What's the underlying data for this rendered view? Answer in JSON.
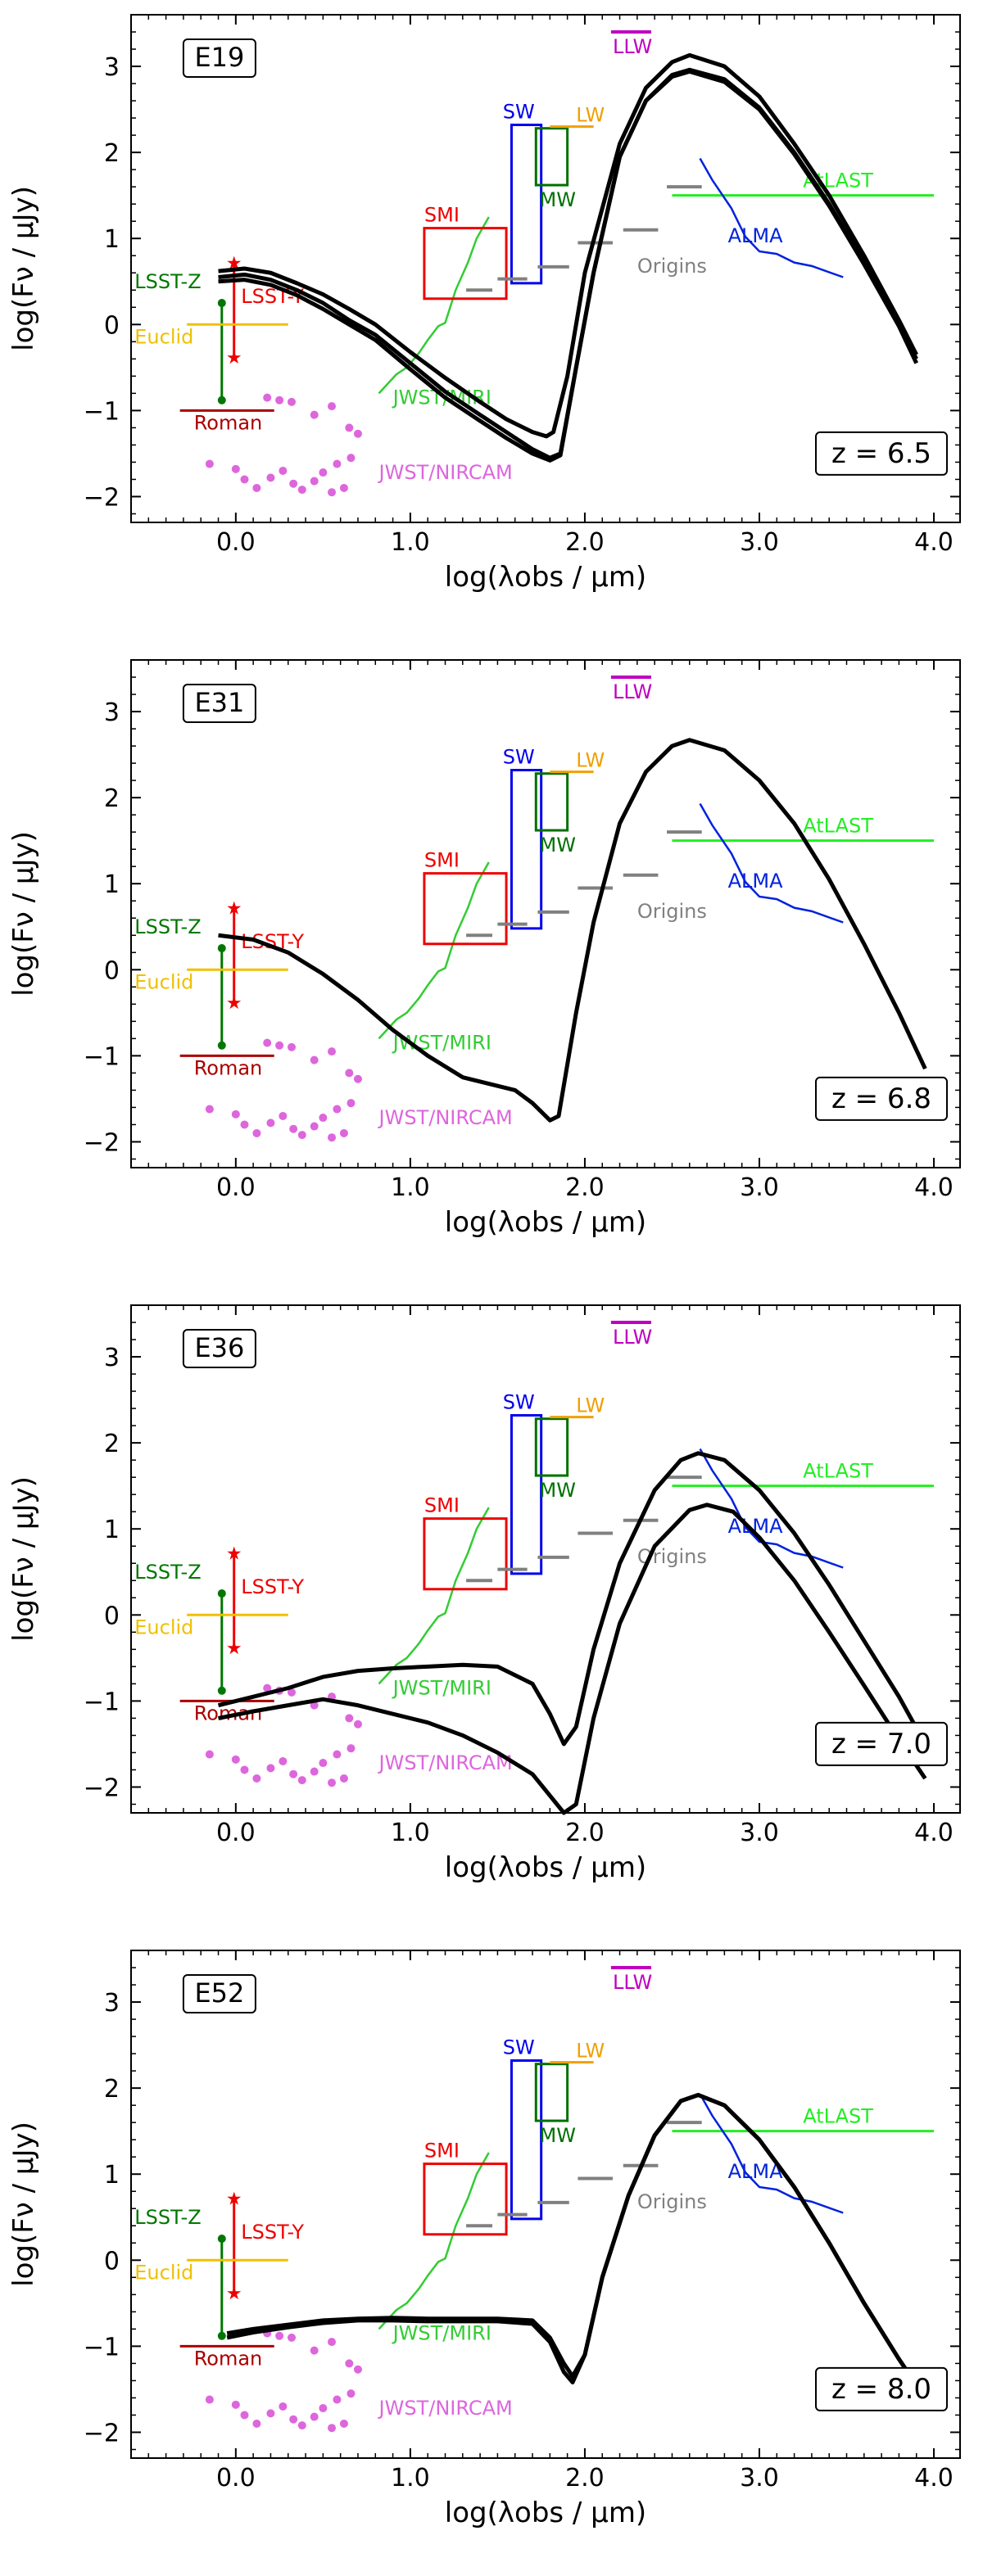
{
  "colors": {
    "sed": "#000000",
    "llw": "#c000c0",
    "sw": "#0000ee",
    "lw": "#f0a000",
    "mw": "#007000",
    "smi": "#ee0000",
    "origins": "#808080",
    "alma": "#0022dd",
    "atlast": "#22ee22",
    "jwst_miri": "#33cc33",
    "jwst_nircam": "#dd66dd",
    "lsst_z": "#007700",
    "lsst_y": "#ee0000",
    "euclid": "#f0c000",
    "roman": "#aa0000"
  },
  "instruments": {
    "labels": {
      "llw": "LLW",
      "sw": "SW",
      "lw": "LW",
      "mw": "MW",
      "smi": "SMI",
      "origins": "Origins",
      "alma": "ALMA",
      "atlast": "AtLAST",
      "jwst_miri": "JWST/MIRI",
      "jwst_nircam": "JWST/NIRCAM",
      "lsst_z": "LSST-Z",
      "lsst_y": "LSST-Y",
      "euclid": "Euclid",
      "roman": "Roman"
    },
    "llw_line": [
      [
        2.15,
        3.4
      ],
      [
        2.38,
        3.4
      ]
    ],
    "sw_box": [
      1.58,
      0.48,
      1.75,
      2.32
    ],
    "lw_line": [
      [
        1.8,
        2.3
      ],
      [
        2.05,
        2.3
      ]
    ],
    "mw_box": [
      1.72,
      1.62,
      1.9,
      2.28
    ],
    "smi_box": [
      1.08,
      0.3,
      1.55,
      1.12
    ],
    "origins_segments": [
      [
        1.32,
        1.47,
        0.4
      ],
      [
        1.5,
        1.67,
        0.53
      ],
      [
        1.73,
        1.91,
        0.67
      ],
      [
        1.96,
        2.16,
        0.95
      ],
      [
        2.22,
        2.42,
        1.1
      ],
      [
        2.47,
        2.67,
        1.6
      ]
    ],
    "alma_line": [
      [
        2.66,
        1.93
      ],
      [
        2.73,
        1.68
      ],
      [
        2.84,
        1.35
      ],
      [
        2.92,
        1.02
      ],
      [
        3.0,
        0.85
      ],
      [
        3.1,
        0.82
      ],
      [
        3.2,
        0.72
      ],
      [
        3.3,
        0.68
      ],
      [
        3.48,
        0.55
      ]
    ],
    "atlast_line": [
      [
        2.5,
        1.5
      ],
      [
        4.0,
        1.5
      ]
    ],
    "miri_line": [
      [
        0.82,
        -0.8
      ],
      [
        0.92,
        -0.58
      ],
      [
        0.98,
        -0.5
      ],
      [
        1.05,
        -0.33
      ],
      [
        1.1,
        -0.18
      ],
      [
        1.16,
        -0.02
      ],
      [
        1.2,
        0.02
      ],
      [
        1.26,
        0.4
      ],
      [
        1.33,
        0.72
      ],
      [
        1.38,
        1.0
      ],
      [
        1.45,
        1.25
      ]
    ],
    "nircam_points": [
      [
        0.18,
        -0.85
      ],
      [
        0.25,
        -0.88
      ],
      [
        0.32,
        -0.9
      ],
      [
        0.45,
        -1.05
      ],
      [
        0.55,
        -0.95
      ],
      [
        0.65,
        -1.2
      ],
      [
        0.7,
        -1.27
      ],
      [
        -0.15,
        -1.62
      ],
      [
        0.0,
        -1.68
      ],
      [
        0.05,
        -1.8
      ],
      [
        0.12,
        -1.9
      ],
      [
        0.2,
        -1.78
      ],
      [
        0.27,
        -1.7
      ],
      [
        0.33,
        -1.85
      ],
      [
        0.38,
        -1.92
      ],
      [
        0.45,
        -1.82
      ],
      [
        0.5,
        -1.72
      ],
      [
        0.55,
        -1.95
      ],
      [
        0.58,
        -1.62
      ],
      [
        0.62,
        -1.9
      ],
      [
        0.66,
        -1.55
      ]
    ],
    "lsst_z_line": [
      [
        -0.08,
        0.25
      ],
      [
        -0.08,
        -0.88
      ]
    ],
    "lsst_y_line": [
      [
        -0.01,
        0.72
      ],
      [
        -0.01,
        -0.38
      ]
    ],
    "euclid_line": [
      [
        -0.28,
        0.0
      ],
      [
        0.3,
        0.0
      ]
    ],
    "roman_line": [
      [
        -0.32,
        -1.0
      ],
      [
        0.22,
        -1.0
      ]
    ]
  },
  "chart_data": [
    {
      "type": "line",
      "label": "E19",
      "redshift_text": "z = 6.5",
      "xlabel": "log(λobs / μm)",
      "ylabel": "log(Fν / μJy)",
      "xlim": [
        -0.6,
        4.15
      ],
      "ylim": [
        -2.3,
        3.6
      ],
      "xticks": [
        "0.0",
        "1.0",
        "2.0",
        "3.0",
        "4.0"
      ],
      "yticks": [
        "−2",
        "−1",
        "0",
        "1",
        "2",
        "3"
      ],
      "series": [
        {
          "x": [
            -0.1,
            0.05,
            0.2,
            0.35,
            0.5,
            0.65,
            0.8,
            1.0,
            1.2,
            1.4,
            1.55,
            1.7,
            1.78,
            1.82,
            1.9,
            2.0,
            2.2,
            2.35,
            2.5,
            2.6,
            2.8,
            3.0,
            3.2,
            3.4,
            3.6,
            3.8,
            3.9
          ],
          "y": [
            0.62,
            0.65,
            0.6,
            0.48,
            0.35,
            0.18,
            0.0,
            -0.32,
            -0.62,
            -0.9,
            -1.1,
            -1.25,
            -1.3,
            -1.25,
            -0.6,
            0.6,
            2.1,
            2.75,
            3.05,
            3.13,
            3.0,
            2.65,
            2.1,
            1.5,
            0.8,
            0.05,
            -0.35
          ]
        },
        {
          "x": [
            -0.1,
            0.05,
            0.2,
            0.35,
            0.5,
            0.65,
            0.8,
            1.0,
            1.2,
            1.4,
            1.55,
            1.7,
            1.8,
            1.86,
            1.95,
            2.05,
            2.2,
            2.35,
            2.5,
            2.6,
            2.8,
            3.0,
            3.2,
            3.4,
            3.6,
            3.8,
            3.9
          ],
          "y": [
            0.55,
            0.58,
            0.52,
            0.4,
            0.25,
            0.05,
            -0.12,
            -0.45,
            -0.78,
            -1.05,
            -1.25,
            -1.45,
            -1.55,
            -1.5,
            -0.5,
            0.6,
            1.95,
            2.6,
            2.9,
            2.96,
            2.85,
            2.52,
            2.0,
            1.4,
            0.72,
            0.0,
            -0.4
          ]
        },
        {
          "x": [
            -0.1,
            0.05,
            0.2,
            0.35,
            0.5,
            0.65,
            0.8,
            1.0,
            1.2,
            1.4,
            1.55,
            1.7,
            1.8,
            1.86,
            1.95,
            2.05,
            2.2,
            2.35,
            2.5,
            2.6,
            2.8,
            3.0,
            3.2,
            3.4,
            3.6,
            3.8,
            3.9
          ],
          "y": [
            0.5,
            0.52,
            0.46,
            0.34,
            0.18,
            0.0,
            -0.18,
            -0.52,
            -0.85,
            -1.12,
            -1.32,
            -1.5,
            -1.58,
            -1.52,
            -0.5,
            0.6,
            1.95,
            2.6,
            2.88,
            2.94,
            2.82,
            2.5,
            1.98,
            1.38,
            0.7,
            -0.02,
            -0.45
          ]
        }
      ]
    },
    {
      "type": "line",
      "label": "E31",
      "redshift_text": "z = 6.8",
      "xlabel": "log(λobs / μm)",
      "ylabel": "log(Fν / μJy)",
      "xlim": [
        -0.6,
        4.15
      ],
      "ylim": [
        -2.3,
        3.6
      ],
      "xticks": [
        "0.0",
        "1.0",
        "2.0",
        "3.0",
        "4.0"
      ],
      "yticks": [
        "−2",
        "−1",
        "0",
        "1",
        "2",
        "3"
      ],
      "series": [
        {
          "x": [
            -0.1,
            0.1,
            0.3,
            0.5,
            0.7,
            0.9,
            1.1,
            1.3,
            1.5,
            1.6,
            1.7,
            1.8,
            1.85,
            1.95,
            2.05,
            2.2,
            2.35,
            2.5,
            2.6,
            2.8,
            3.0,
            3.2,
            3.4,
            3.6,
            3.8,
            3.95
          ],
          "y": [
            0.4,
            0.35,
            0.2,
            -0.05,
            -0.35,
            -0.7,
            -1.0,
            -1.25,
            -1.35,
            -1.4,
            -1.55,
            -1.75,
            -1.7,
            -0.5,
            0.55,
            1.7,
            2.3,
            2.6,
            2.67,
            2.55,
            2.2,
            1.7,
            1.05,
            0.3,
            -0.5,
            -1.15
          ]
        }
      ]
    },
    {
      "type": "line",
      "label": "E36",
      "redshift_text": "z = 7.0",
      "xlabel": "log(λobs / μm)",
      "ylabel": "log(Fν / μJy)",
      "xlim": [
        -0.6,
        4.15
      ],
      "ylim": [
        -2.3,
        3.6
      ],
      "xticks": [
        "0.0",
        "1.0",
        "2.0",
        "3.0",
        "4.0"
      ],
      "yticks": [
        "−2",
        "−1",
        "0",
        "1",
        "2",
        "3"
      ],
      "series": [
        {
          "x": [
            -0.1,
            0.1,
            0.3,
            0.5,
            0.7,
            0.9,
            1.1,
            1.3,
            1.5,
            1.7,
            1.8,
            1.88,
            1.95,
            2.05,
            2.2,
            2.4,
            2.55,
            2.65,
            2.8,
            3.0,
            3.2,
            3.4,
            3.6,
            3.8,
            3.95
          ],
          "y": [
            -1.05,
            -0.95,
            -0.85,
            -0.72,
            -0.65,
            -0.62,
            -0.6,
            -0.58,
            -0.6,
            -0.8,
            -1.15,
            -1.5,
            -1.3,
            -0.4,
            0.6,
            1.45,
            1.8,
            1.88,
            1.8,
            1.45,
            0.95,
            0.35,
            -0.3,
            -0.95,
            -1.5
          ]
        },
        {
          "x": [
            -0.1,
            0.1,
            0.3,
            0.5,
            0.7,
            0.9,
            1.1,
            1.3,
            1.5,
            1.7,
            1.8,
            1.88,
            1.95,
            2.05,
            2.2,
            2.4,
            2.6,
            2.7,
            2.85,
            3.0,
            3.2,
            3.4,
            3.6,
            3.8,
            3.95
          ],
          "y": [
            -1.2,
            -1.12,
            -1.05,
            -0.98,
            -1.05,
            -1.15,
            -1.25,
            -1.4,
            -1.6,
            -1.85,
            -2.1,
            -2.3,
            -2.2,
            -1.2,
            -0.1,
            0.8,
            1.22,
            1.28,
            1.2,
            0.9,
            0.4,
            -0.2,
            -0.82,
            -1.45,
            -1.9
          ]
        }
      ]
    },
    {
      "type": "line",
      "label": "E52",
      "redshift_text": "z = 8.0",
      "xlabel": "log(λobs / μm)",
      "ylabel": "log(Fν / μJy)",
      "xlim": [
        -0.6,
        4.15
      ],
      "ylim": [
        -2.3,
        3.6
      ],
      "xticks": [
        "0.0",
        "1.0",
        "2.0",
        "3.0",
        "4.0"
      ],
      "yticks": [
        "−2",
        "−1",
        "0",
        "1",
        "2",
        "3"
      ],
      "series": [
        {
          "x": [
            -0.05,
            0.1,
            0.3,
            0.5,
            0.7,
            0.9,
            1.1,
            1.3,
            1.5,
            1.7,
            1.8,
            1.88,
            1.93,
            2.0,
            2.1,
            2.25,
            2.4,
            2.55,
            2.65,
            2.8,
            3.0,
            3.2,
            3.4,
            3.6,
            3.8,
            3.95
          ],
          "y": [
            -0.85,
            -0.8,
            -0.75,
            -0.7,
            -0.68,
            -0.67,
            -0.68,
            -0.68,
            -0.68,
            -0.7,
            -0.9,
            -1.2,
            -1.35,
            -1.1,
            -0.2,
            0.75,
            1.45,
            1.85,
            1.92,
            1.8,
            1.4,
            0.85,
            0.2,
            -0.5,
            -1.15,
            -1.6
          ]
        },
        {
          "x": [
            -0.05,
            0.1,
            0.3,
            0.5,
            0.7,
            0.9,
            1.1,
            1.3,
            1.5,
            1.7,
            1.8,
            1.88,
            1.93,
            2.0,
            2.1,
            2.25,
            2.4,
            2.55,
            2.65,
            2.8,
            3.0,
            3.2,
            3.4,
            3.6,
            3.8,
            3.95
          ],
          "y": [
            -0.9,
            -0.84,
            -0.78,
            -0.73,
            -0.7,
            -0.7,
            -0.71,
            -0.71,
            -0.71,
            -0.74,
            -0.95,
            -1.3,
            -1.42,
            -1.1,
            -0.2,
            0.75,
            1.45,
            1.85,
            1.92,
            1.8,
            1.4,
            0.85,
            0.2,
            -0.5,
            -1.15,
            -1.6
          ]
        }
      ]
    }
  ]
}
